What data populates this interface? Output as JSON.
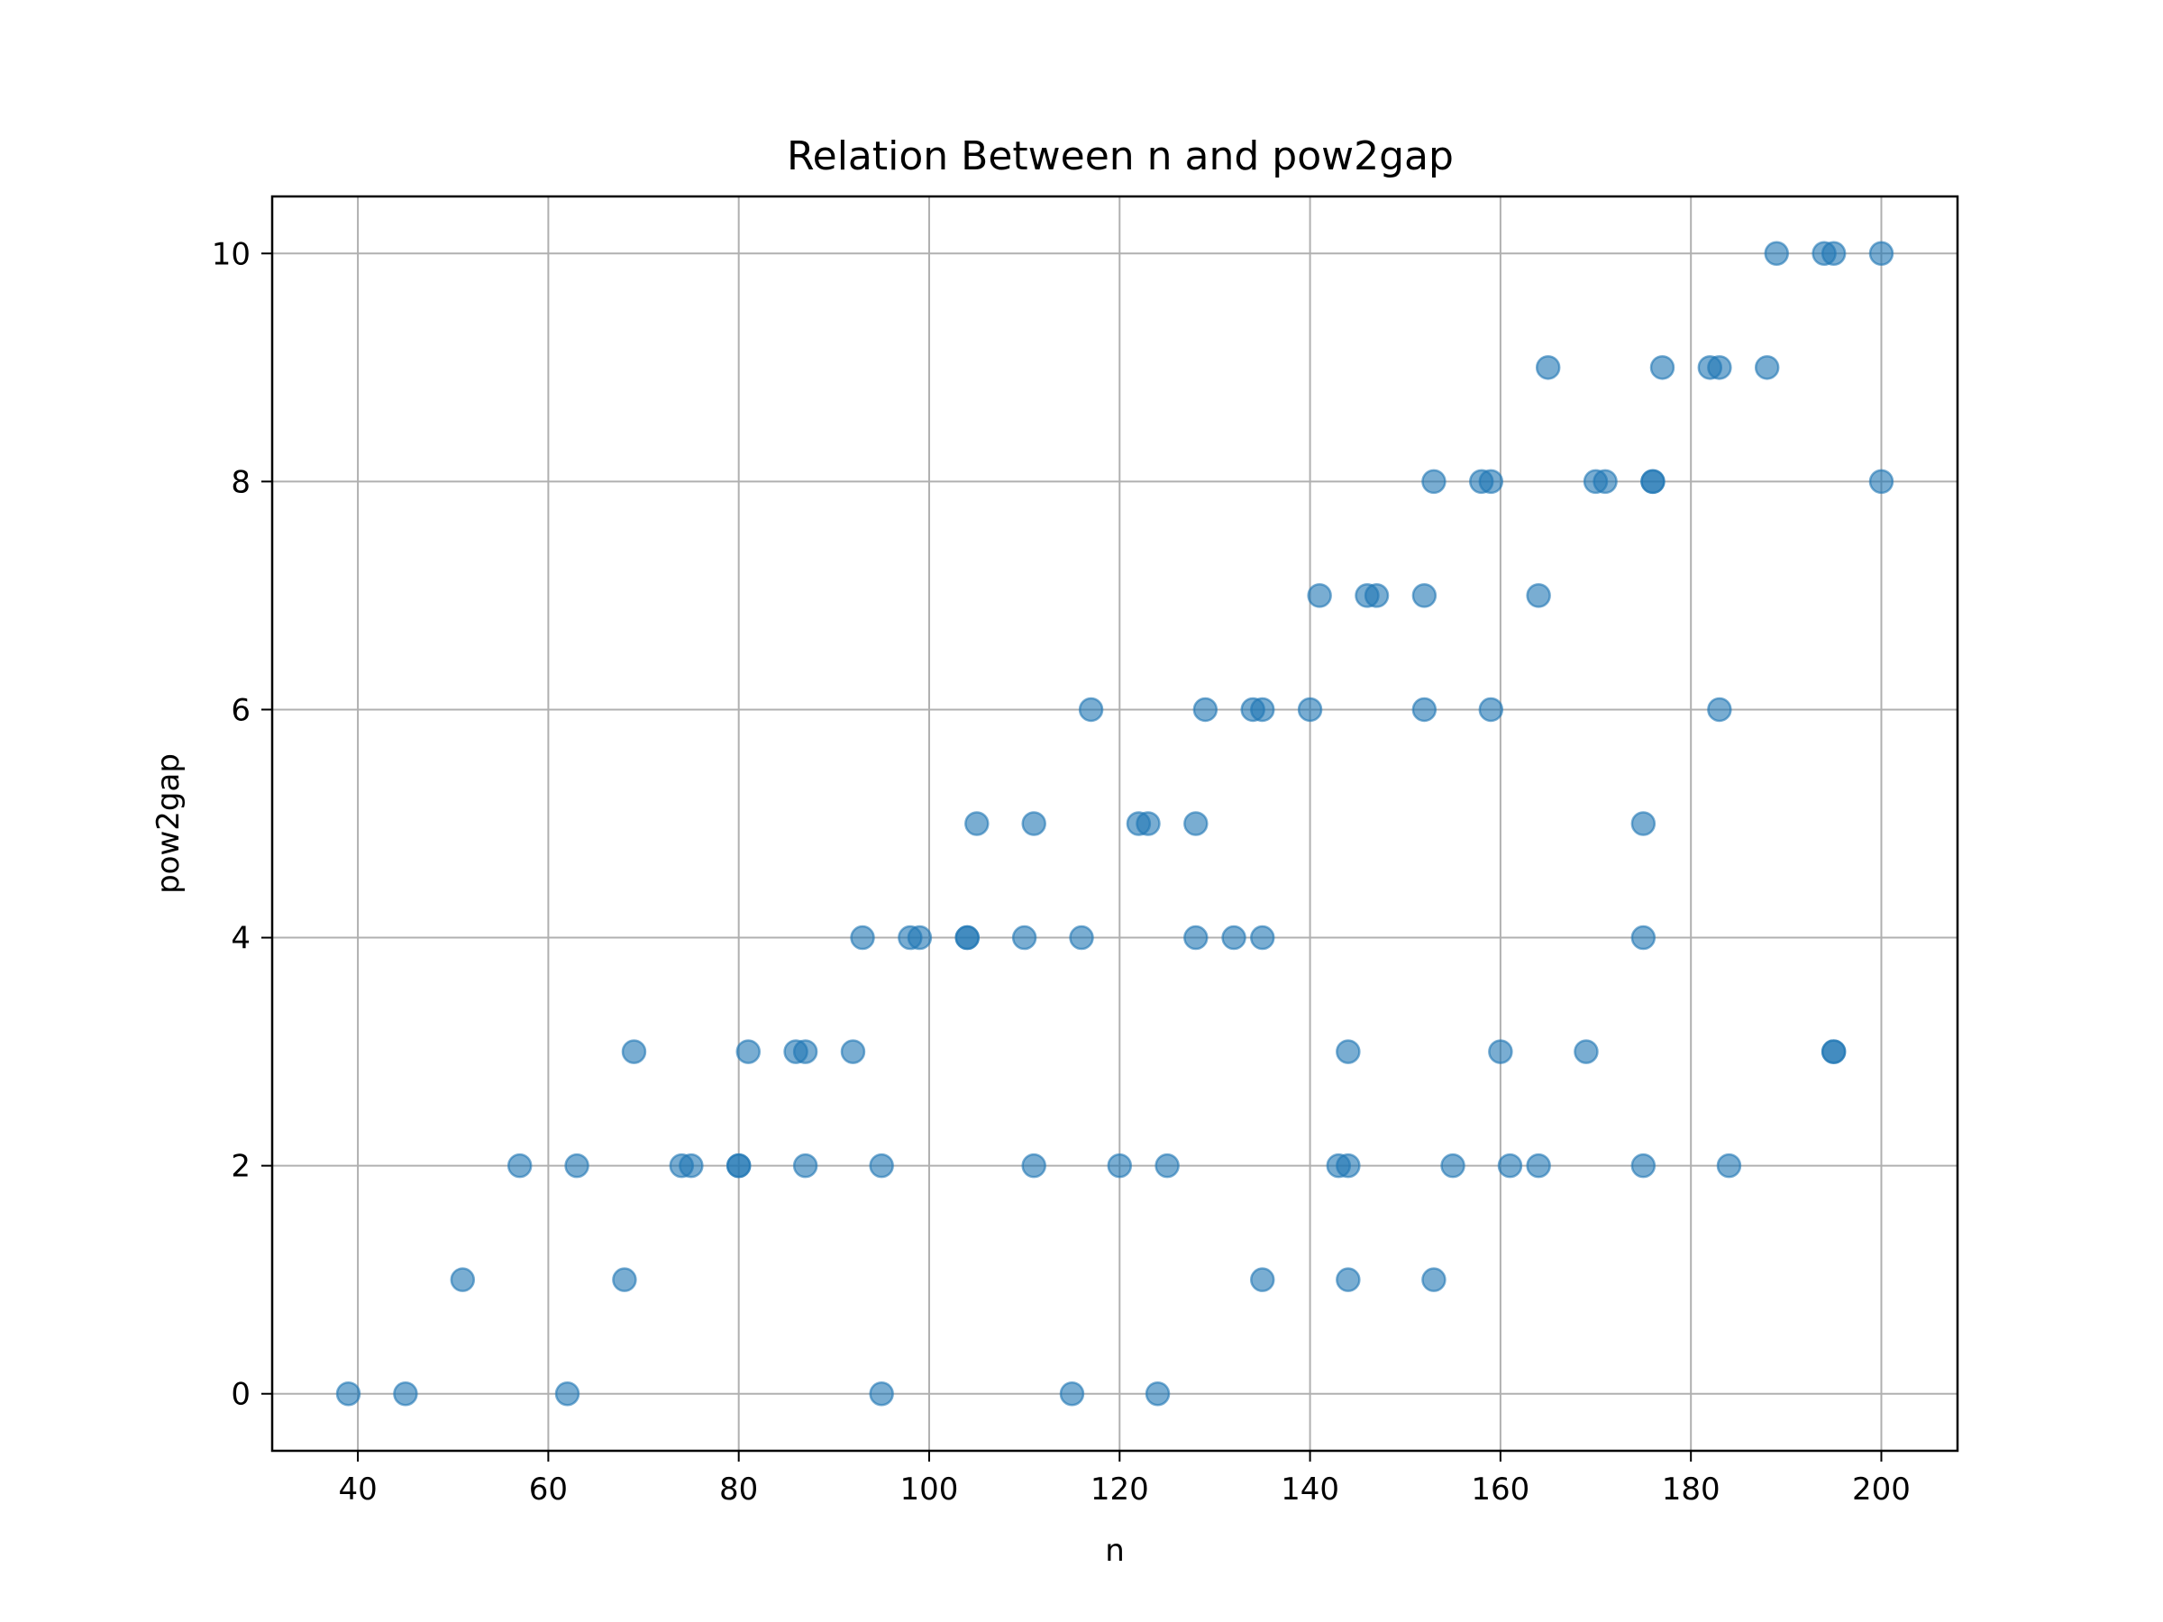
{
  "chart_data": {
    "type": "scatter",
    "title": "Relation Between n and pow2gap",
    "xlabel": "n",
    "ylabel": "pow2gap",
    "xlim": [
      31,
      208
    ],
    "ylim": [
      -0.5,
      10.5
    ],
    "xticks": [
      40,
      60,
      80,
      100,
      120,
      140,
      160,
      180,
      200
    ],
    "yticks": [
      0,
      2,
      4,
      6,
      8,
      10
    ],
    "grid": true,
    "legend": "none",
    "marker_color": "#1f77b4",
    "marker_alpha": 0.6,
    "series": [
      {
        "x": [
          39,
          45,
          62,
          95,
          115,
          124,
          51,
          68,
          135,
          144,
          153,
          57,
          63,
          74,
          75,
          80,
          80,
          87,
          95,
          111,
          120,
          125,
          143,
          144,
          155,
          161,
          164,
          175,
          184,
          69,
          81,
          86,
          87,
          92,
          144,
          160,
          169,
          195,
          195,
          93,
          98,
          99,
          104,
          104,
          110,
          116,
          128,
          132,
          135,
          175,
          105,
          111,
          122,
          123,
          128,
          175,
          117,
          129,
          134,
          135,
          140,
          152,
          159,
          183,
          141,
          146,
          147,
          152,
          164,
          153,
          158,
          159,
          170,
          171,
          176,
          176,
          200,
          165,
          177,
          182,
          183,
          188,
          189,
          194,
          195,
          200
        ],
        "y": [
          0,
          0,
          0,
          0,
          0,
          0,
          1,
          1,
          1,
          1,
          1,
          2,
          2,
          2,
          2,
          2,
          2,
          2,
          2,
          2,
          2,
          2,
          2,
          2,
          2,
          2,
          2,
          2,
          2,
          3,
          3,
          3,
          3,
          3,
          3,
          3,
          3,
          3,
          3,
          4,
          4,
          4,
          4,
          4,
          4,
          4,
          4,
          4,
          4,
          4,
          5,
          5,
          5,
          5,
          5,
          5,
          6,
          6,
          6,
          6,
          6,
          6,
          6,
          6,
          7,
          7,
          7,
          7,
          7,
          8,
          8,
          8,
          8,
          8,
          8,
          8,
          8,
          9,
          9,
          9,
          9,
          9,
          10,
          10,
          10,
          10
        ]
      }
    ]
  }
}
